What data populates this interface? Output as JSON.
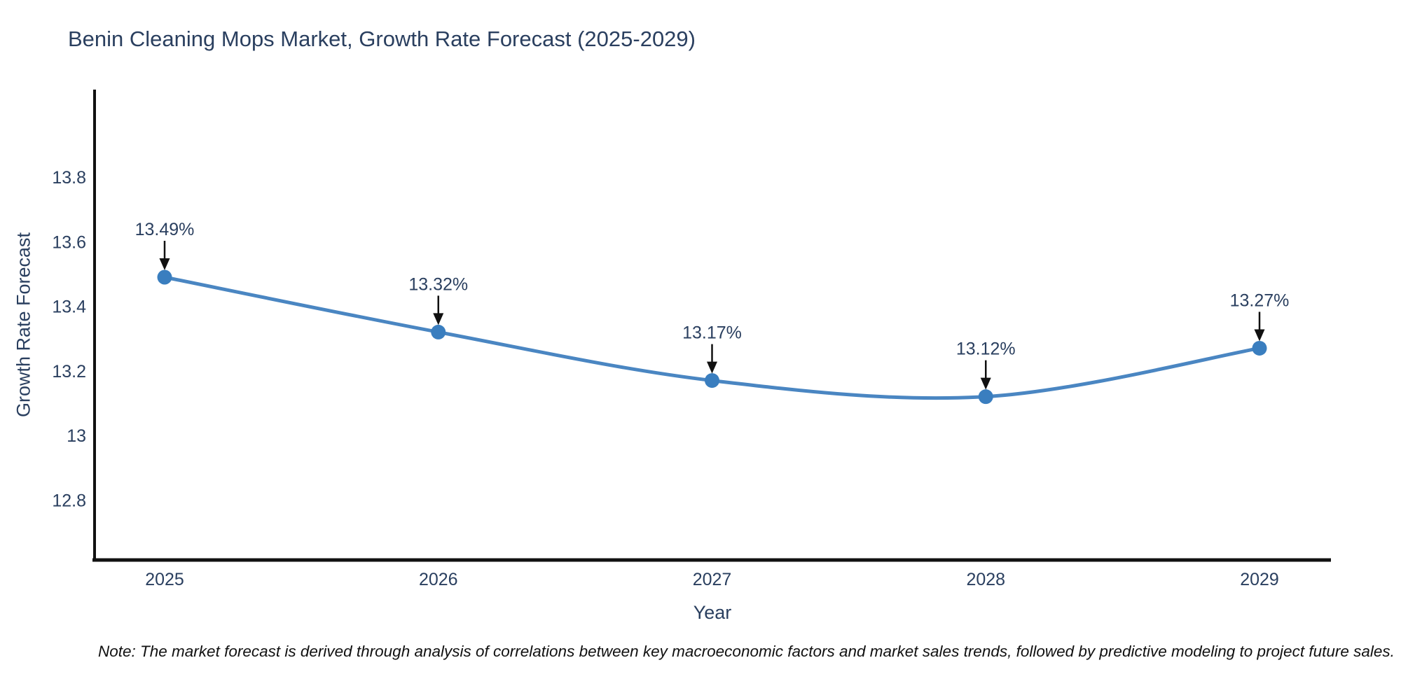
{
  "title": "Benin Cleaning Mops Market, Growth Rate Forecast (2025-2029)",
  "note": "Note: The market forecast is derived through analysis of correlations between key macroeconomic factors and market sales trends, followed by predictive modeling to project future sales.",
  "chart_data": {
    "type": "line",
    "title": "Benin Cleaning Mops Market, Growth Rate Forecast (2025-2029)",
    "xlabel": "Year",
    "ylabel": "Growth Rate Forecast",
    "x": [
      2025,
      2026,
      2027,
      2028,
      2029
    ],
    "values": [
      13.49,
      13.32,
      13.17,
      13.12,
      13.27
    ],
    "point_labels": [
      "13.49%",
      "13.32%",
      "13.17%",
      "13.12%",
      "13.27%"
    ],
    "series_name": "Growth Rate Forecast",
    "xlim": [
      2024.74,
      2029.26
    ],
    "ylim": [
      12.61,
      14.07
    ],
    "ytick_values": [
      13.8,
      13.6,
      13.4,
      13.2,
      13.0,
      12.8
    ],
    "ytick_labels": [
      "13.8",
      "13.6",
      "13.4",
      "13.2",
      "13",
      "12.8"
    ],
    "xtick_labels": [
      "2025",
      "2026",
      "2027",
      "2028",
      "2029"
    ],
    "grid": false,
    "legend": "none",
    "smooth_spline": true,
    "annotation_arrows": true,
    "colors": {
      "line": "#4a86c2",
      "marker": "#3a7ebf",
      "axis": "#111111",
      "tick_text": "#2a3f5f",
      "annotation_text": "#2a3f5f",
      "arrow": "#111111",
      "background": "#ffffff"
    }
  }
}
